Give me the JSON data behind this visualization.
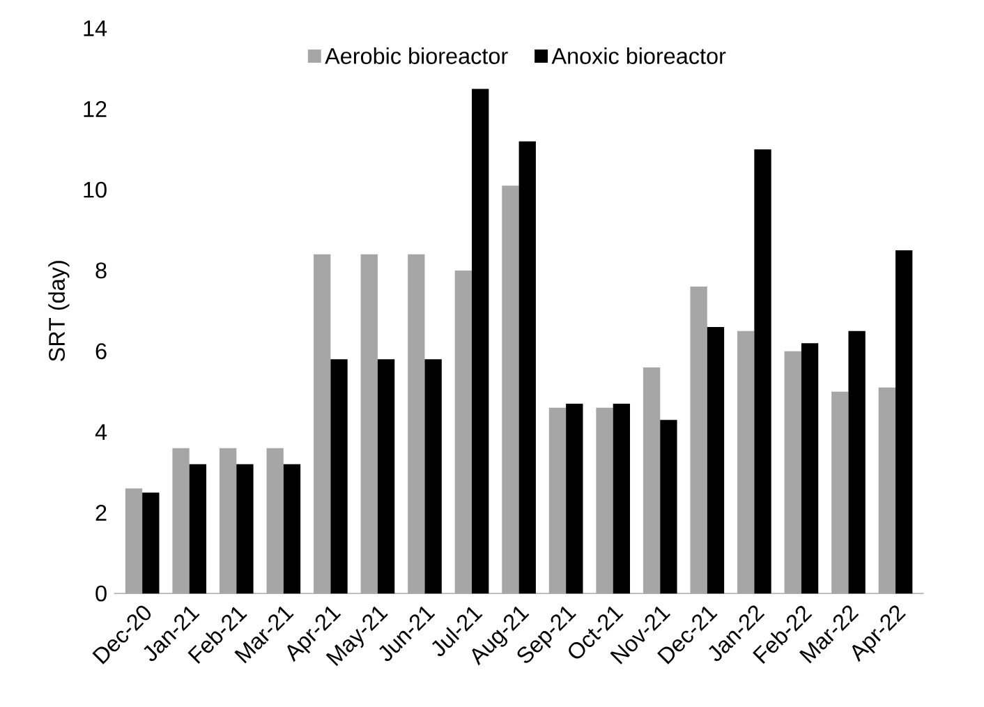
{
  "chart_data": {
    "type": "bar",
    "ylabel": "SRT (day)",
    "categories": [
      "Dec-20",
      "Jan-21",
      "Feb-21",
      "Mar-21",
      "Apr-21",
      "May-21",
      "Jun-21",
      "Jul-21",
      "Aug-21",
      "Sep-21",
      "Oct-21",
      "Nov-21",
      "Dec-21",
      "Jan-22",
      "Feb-22",
      "Mar-22",
      "Apr-22"
    ],
    "series": [
      {
        "name": "Aerobic bioreactor",
        "color": "#a6a6a6",
        "values": [
          2.6,
          3.6,
          3.6,
          3.6,
          8.4,
          8.4,
          8.4,
          8.0,
          10.1,
          4.6,
          4.6,
          5.6,
          7.6,
          6.5,
          6.0,
          5.0,
          5.1
        ]
      },
      {
        "name": "Anoxic bioreactor",
        "color": "#000000",
        "values": [
          2.5,
          3.2,
          3.2,
          3.2,
          5.8,
          5.8,
          5.8,
          12.5,
          11.2,
          4.7,
          4.7,
          4.3,
          6.6,
          11.0,
          6.2,
          6.5,
          8.5
        ]
      }
    ],
    "ylim": [
      0,
      14
    ],
    "yticks": [
      0,
      2,
      4,
      6,
      8,
      10,
      12,
      14
    ],
    "grid": false,
    "legend": "top"
  }
}
